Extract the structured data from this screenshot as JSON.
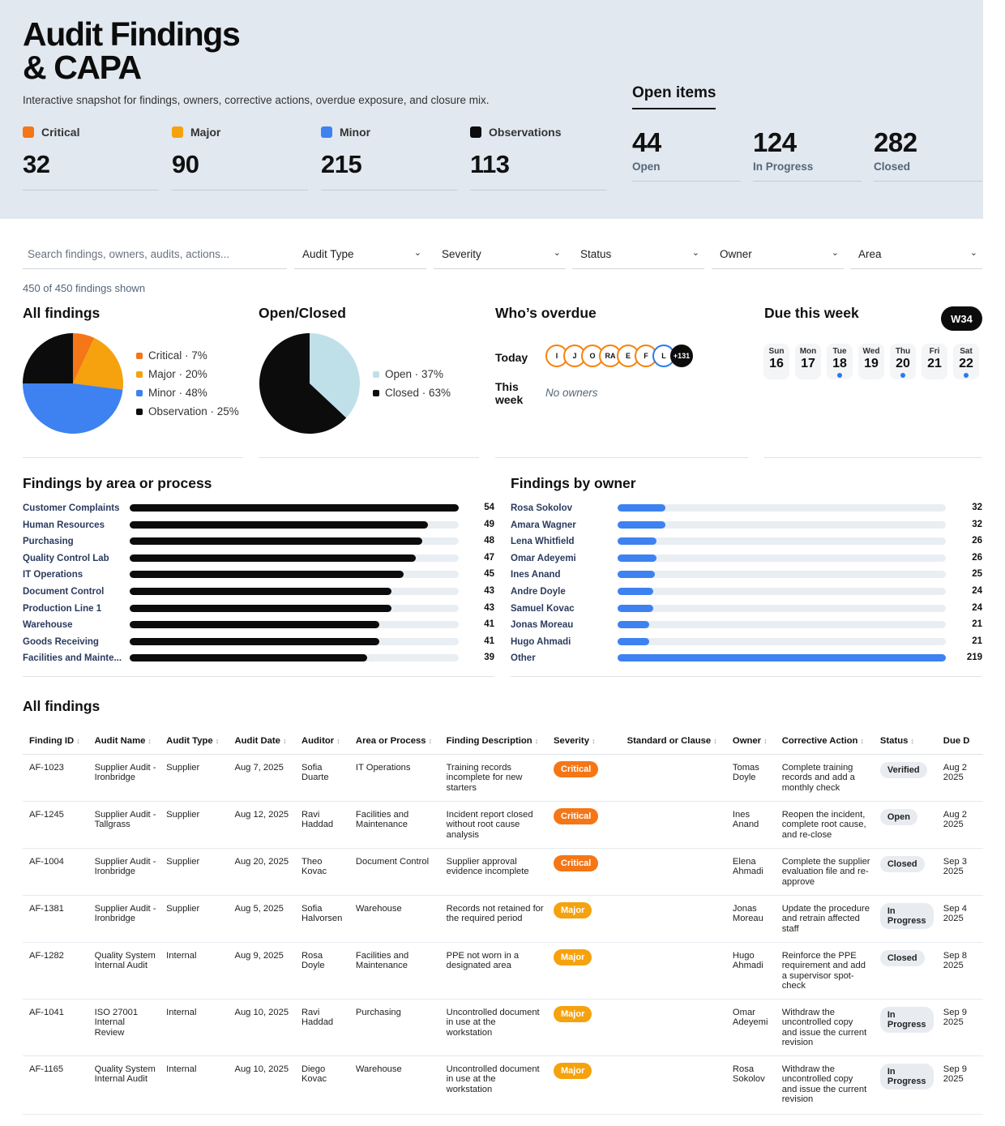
{
  "header": {
    "title_line1": "Audit Findings",
    "title_line2": "& CAPA",
    "subtitle": "Interactive snapshot for findings, owners, corrective actions, overdue exposure, and closure mix."
  },
  "severity_counts": [
    {
      "label": "Critical",
      "value": "32",
      "color": "#f47616"
    },
    {
      "label": "Major",
      "value": "90",
      "color": "#f5a20e"
    },
    {
      "label": "Minor",
      "value": "215",
      "color": "#3d82f0"
    },
    {
      "label": "Observations",
      "value": "113",
      "color": "#0c0c0c"
    }
  ],
  "open_items": {
    "title": "Open items",
    "stats": [
      {
        "value": "44",
        "label": "Open"
      },
      {
        "value": "124",
        "label": "In Progress"
      },
      {
        "value": "282",
        "label": "Closed"
      }
    ]
  },
  "filters": {
    "search_placeholder": "Search findings, owners, audits, actions...",
    "dropdowns": [
      "Audit Type",
      "Severity",
      "Status",
      "Owner",
      "Area"
    ],
    "count_text": "450 of 450 findings shown"
  },
  "all_findings_chart": {
    "title": "All findings",
    "legend": [
      "Critical · 7%",
      "Major · 20%",
      "Minor · 48%",
      "Observation · 25%"
    ]
  },
  "open_closed_chart": {
    "title": "Open/Closed",
    "legend": [
      "Open · 37%",
      "Closed · 63%"
    ]
  },
  "chart_data": [
    {
      "type": "pie",
      "title": "All findings",
      "categories": [
        "Critical",
        "Major",
        "Minor",
        "Observation"
      ],
      "values": [
        7,
        20,
        48,
        25
      ],
      "colors": [
        "#f47616",
        "#f5a20e",
        "#3d82f0",
        "#0c0c0c"
      ],
      "legend_position": "right"
    },
    {
      "type": "pie",
      "title": "Open/Closed",
      "categories": [
        "Open",
        "Closed"
      ],
      "values": [
        37,
        63
      ],
      "colors": [
        "#bfe0e8",
        "#0c0c0c"
      ],
      "legend_position": "right"
    },
    {
      "type": "bar",
      "title": "Findings by area or process",
      "categories": [
        "Customer Complaints",
        "Human Resources",
        "Purchasing",
        "Quality Control Lab",
        "IT Operations",
        "Document Control",
        "Production Line 1",
        "Warehouse",
        "Goods Receiving",
        "Facilities and Mainte..."
      ],
      "values": [
        54,
        49,
        48,
        47,
        45,
        43,
        43,
        41,
        41,
        39
      ],
      "max": 54,
      "color": "#0c0c0c"
    },
    {
      "type": "bar",
      "title": "Findings by owner",
      "categories": [
        "Rosa Sokolov",
        "Amara Wagner",
        "Lena Whitfield",
        "Omar Adeyemi",
        "Ines Anand",
        "Andre Doyle",
        "Samuel Kovac",
        "Jonas Moreau",
        "Hugo Ahmadi",
        "Other"
      ],
      "values": [
        32,
        32,
        26,
        26,
        25,
        24,
        24,
        21,
        21,
        219
      ],
      "max": 219,
      "color": "#3d82f0"
    }
  ],
  "overdue": {
    "title": "Who’s overdue",
    "today_label": "Today",
    "this_week_label": "This week",
    "today_avatars": [
      "I",
      "J",
      "O",
      "RA",
      "E",
      "F",
      "L"
    ],
    "more_label": "+131",
    "no_owners": "No owners"
  },
  "due_week": {
    "title": "Due this week",
    "week_badge": "W34",
    "days": [
      {
        "name": "Sun",
        "date": "16",
        "dot": false
      },
      {
        "name": "Mon",
        "date": "17",
        "dot": false
      },
      {
        "name": "Tue",
        "date": "18",
        "dot": true
      },
      {
        "name": "Wed",
        "date": "19",
        "dot": false
      },
      {
        "name": "Thu",
        "date": "20",
        "dot": true
      },
      {
        "name": "Fri",
        "date": "21",
        "dot": false
      },
      {
        "name": "Sat",
        "date": "22",
        "dot": true
      }
    ]
  },
  "table": {
    "title": "All findings",
    "columns": [
      "Finding ID",
      "Audit Name",
      "Audit Type",
      "Audit Date",
      "Auditor",
      "Area or Process",
      "Finding Description",
      "Severity",
      "Standard or Clause",
      "Owner",
      "Corrective Action",
      "Status",
      "Due D"
    ],
    "rows": [
      [
        "AF-1023",
        "Supplier Audit - Ironbridge",
        "Supplier",
        "Aug 7, 2025",
        "Sofia Duarte",
        "IT Operations",
        "Training records incomplete for new starters",
        "Critical",
        "",
        "Tomas Doyle",
        "Complete training records and add a monthly check",
        "Verified",
        "Aug 2 2025"
      ],
      [
        "AF-1245",
        "Supplier Audit - Tallgrass",
        "Supplier",
        "Aug 12, 2025",
        "Ravi Haddad",
        "Facilities and Maintenance",
        "Incident report closed without root cause analysis",
        "Critical",
        "",
        "Ines Anand",
        "Reopen the incident, complete root cause, and re-close",
        "Open",
        "Aug 2 2025"
      ],
      [
        "AF-1004",
        "Supplier Audit - Ironbridge",
        "Supplier",
        "Aug 20, 2025",
        "Theo Kovac",
        "Document Control",
        "Supplier approval evidence incomplete",
        "Critical",
        "",
        "Elena Ahmadi",
        "Complete the supplier evaluation file and re-approve",
        "Closed",
        "Sep 3 2025"
      ],
      [
        "AF-1381",
        "Supplier Audit - Ironbridge",
        "Supplier",
        "Aug 5, 2025",
        "Sofia Halvorsen",
        "Warehouse",
        "Records not retained for the required period",
        "Major",
        "",
        "Jonas Moreau",
        "Update the procedure and retrain affected staff",
        "In Progress",
        "Sep 4 2025"
      ],
      [
        "AF-1282",
        "Quality System Internal Audit",
        "Internal",
        "Aug 9, 2025",
        "Rosa Doyle",
        "Facilities and Maintenance",
        "PPE not worn in a designated area",
        "Major",
        "",
        "Hugo Ahmadi",
        "Reinforce the PPE requirement and add a supervisor spot-check",
        "Closed",
        "Sep 8 2025"
      ],
      [
        "AF-1041",
        "ISO 27001 Internal Review",
        "Internal",
        "Aug 10, 2025",
        "Ravi Haddad",
        "Purchasing",
        "Uncontrolled document in use at the workstation",
        "Major",
        "",
        "Omar Adeyemi",
        "Withdraw the uncontrolled copy and issue the current revision",
        "In Progress",
        "Sep 9 2025"
      ],
      [
        "AF-1165",
        "Quality System Internal Audit",
        "Internal",
        "Aug 10, 2025",
        "Diego Kovac",
        "Warehouse",
        "Uncontrolled document in use at the workstation",
        "Major",
        "",
        "Rosa Sokolov",
        "Withdraw the uncontrolled copy and issue the current revision",
        "In Progress",
        "Sep 9 2025"
      ]
    ]
  }
}
